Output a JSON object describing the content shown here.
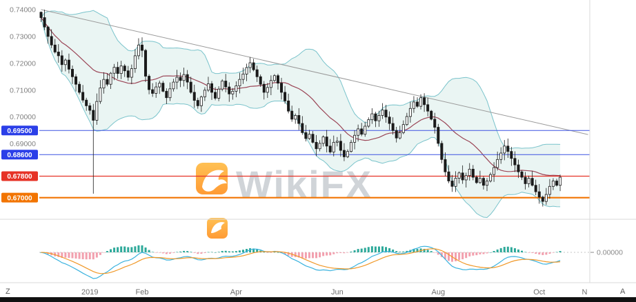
{
  "corner": {
    "left": "Z",
    "right": "A"
  },
  "chart_data": {
    "type": "candlestick",
    "title": "",
    "watermark": {
      "text": "WikiFX",
      "logo_color_top": "#ffb636",
      "logo_color_bottom": "#ff8a12",
      "text_color": "#c8cdd2"
    },
    "x_axis": {
      "total_slots": 158,
      "ticks": [
        {
          "label": "2019",
          "index": 14
        },
        {
          "label": "Feb",
          "index": 29
        },
        {
          "label": "Apr",
          "index": 56
        },
        {
          "label": "Jun",
          "index": 85
        },
        {
          "label": "Aug",
          "index": 114
        },
        {
          "label": "Oct",
          "index": 143
        },
        {
          "label": "N",
          "index": 156
        }
      ]
    },
    "y_axis": {
      "range": [
        0.6635,
        0.7415
      ],
      "plain_labels": [
        {
          "label": "0.74000",
          "value": 0.74
        },
        {
          "label": "0.73000",
          "value": 0.73
        },
        {
          "label": "0.72000",
          "value": 0.72
        },
        {
          "label": "0.71000",
          "value": 0.71
        },
        {
          "label": "0.70000",
          "value": 0.7
        },
        {
          "label": "0.69000",
          "value": 0.69
        }
      ]
    },
    "levels": [
      {
        "price": 0.695,
        "label": "0.69500",
        "line_color": "#3c52e2",
        "badge_color": "#2b3fe8",
        "line_width": 1
      },
      {
        "price": 0.686,
        "label": "0.68600",
        "line_color": "#3c52e2",
        "badge_color": "#2b3fe8",
        "line_width": 1
      },
      {
        "price": 0.678,
        "label": "0.67800",
        "line_color": "#e63226",
        "badge_color": "#e63226",
        "line_width": 1.2
      },
      {
        "price": 0.67,
        "label": "0.67000",
        "line_color": "#f27400",
        "badge_color": "#f27400",
        "line_width": 2.2
      }
    ],
    "trendline": {
      "from_index": 0,
      "from_price": 0.74,
      "to_index": 157,
      "to_price": 0.6935,
      "color": "#9a9a9a"
    },
    "bollinger": {
      "period": 20,
      "mult": 2,
      "band_color": "#79c3cb",
      "fill_color": "#d8ecea",
      "mid_color": "#9a4455"
    },
    "series": {
      "first_open": 0.739,
      "first_high": 0.7393,
      "flash_crash": {
        "index": 15,
        "low": 0.6715
      },
      "closes": [
        0.737,
        0.7335,
        0.73,
        0.7268,
        0.7242,
        0.7228,
        0.7195,
        0.7212,
        0.7178,
        0.715,
        0.7122,
        0.7092,
        0.7063,
        0.7042,
        0.7025,
        0.6988,
        0.7058,
        0.7108,
        0.714,
        0.7122,
        0.7163,
        0.7185,
        0.7162,
        0.719,
        0.7172,
        0.7148,
        0.718,
        0.7228,
        0.7268,
        0.7248,
        0.7152,
        0.7102,
        0.7088,
        0.7112,
        0.7126,
        0.7096,
        0.7072,
        0.7105,
        0.713,
        0.7148,
        0.7136,
        0.7158,
        0.713,
        0.7092,
        0.7062,
        0.7042,
        0.7075,
        0.71,
        0.7124,
        0.7092,
        0.707,
        0.7104,
        0.7134,
        0.7112,
        0.7086,
        0.7096,
        0.7116,
        0.714,
        0.716,
        0.7184,
        0.7202,
        0.7176,
        0.715,
        0.7122,
        0.7092,
        0.711,
        0.7136,
        0.7154,
        0.7126,
        0.7092,
        0.706,
        0.7022,
        0.6992,
        0.7006,
        0.6976,
        0.6942,
        0.692,
        0.6936,
        0.6906,
        0.6882,
        0.6902,
        0.6926,
        0.6892,
        0.687,
        0.6906,
        0.691,
        0.6876,
        0.6852,
        0.6872,
        0.6906,
        0.6932,
        0.6956,
        0.6936,
        0.6966,
        0.699,
        0.7012,
        0.6986,
        0.7006,
        0.7026,
        0.7,
        0.6976,
        0.695,
        0.6922,
        0.6942,
        0.6972,
        0.7002,
        0.7032,
        0.7056,
        0.704,
        0.7072,
        0.7046,
        0.7022,
        0.6992,
        0.6962,
        0.6902,
        0.6842,
        0.6796,
        0.6762,
        0.6742,
        0.6772,
        0.6792,
        0.6766,
        0.6782,
        0.6806,
        0.6776,
        0.6756,
        0.6772,
        0.6746,
        0.6762,
        0.6786,
        0.6812,
        0.6842,
        0.6866,
        0.6892,
        0.6872,
        0.6846,
        0.6822,
        0.6796,
        0.6776,
        0.6752,
        0.6772,
        0.6746,
        0.6722,
        0.6702,
        0.6686,
        0.6712,
        0.6742,
        0.6762,
        0.6746,
        0.6776
      ]
    },
    "macd": {
      "fast": 12,
      "slow": 26,
      "signal": 9,
      "zero_label": "0.00000",
      "macd_color": "#39b2de",
      "signal_color": "#f09726",
      "pos_color": "#2ea99a",
      "neg_color": "#f2a0ae"
    },
    "colors": {
      "candle": "#1a1a1a",
      "axis_text": "#808080",
      "month_text": "#6e6e6e",
      "separator": "#d9d9d9",
      "bottom_bar": "#101010"
    }
  }
}
